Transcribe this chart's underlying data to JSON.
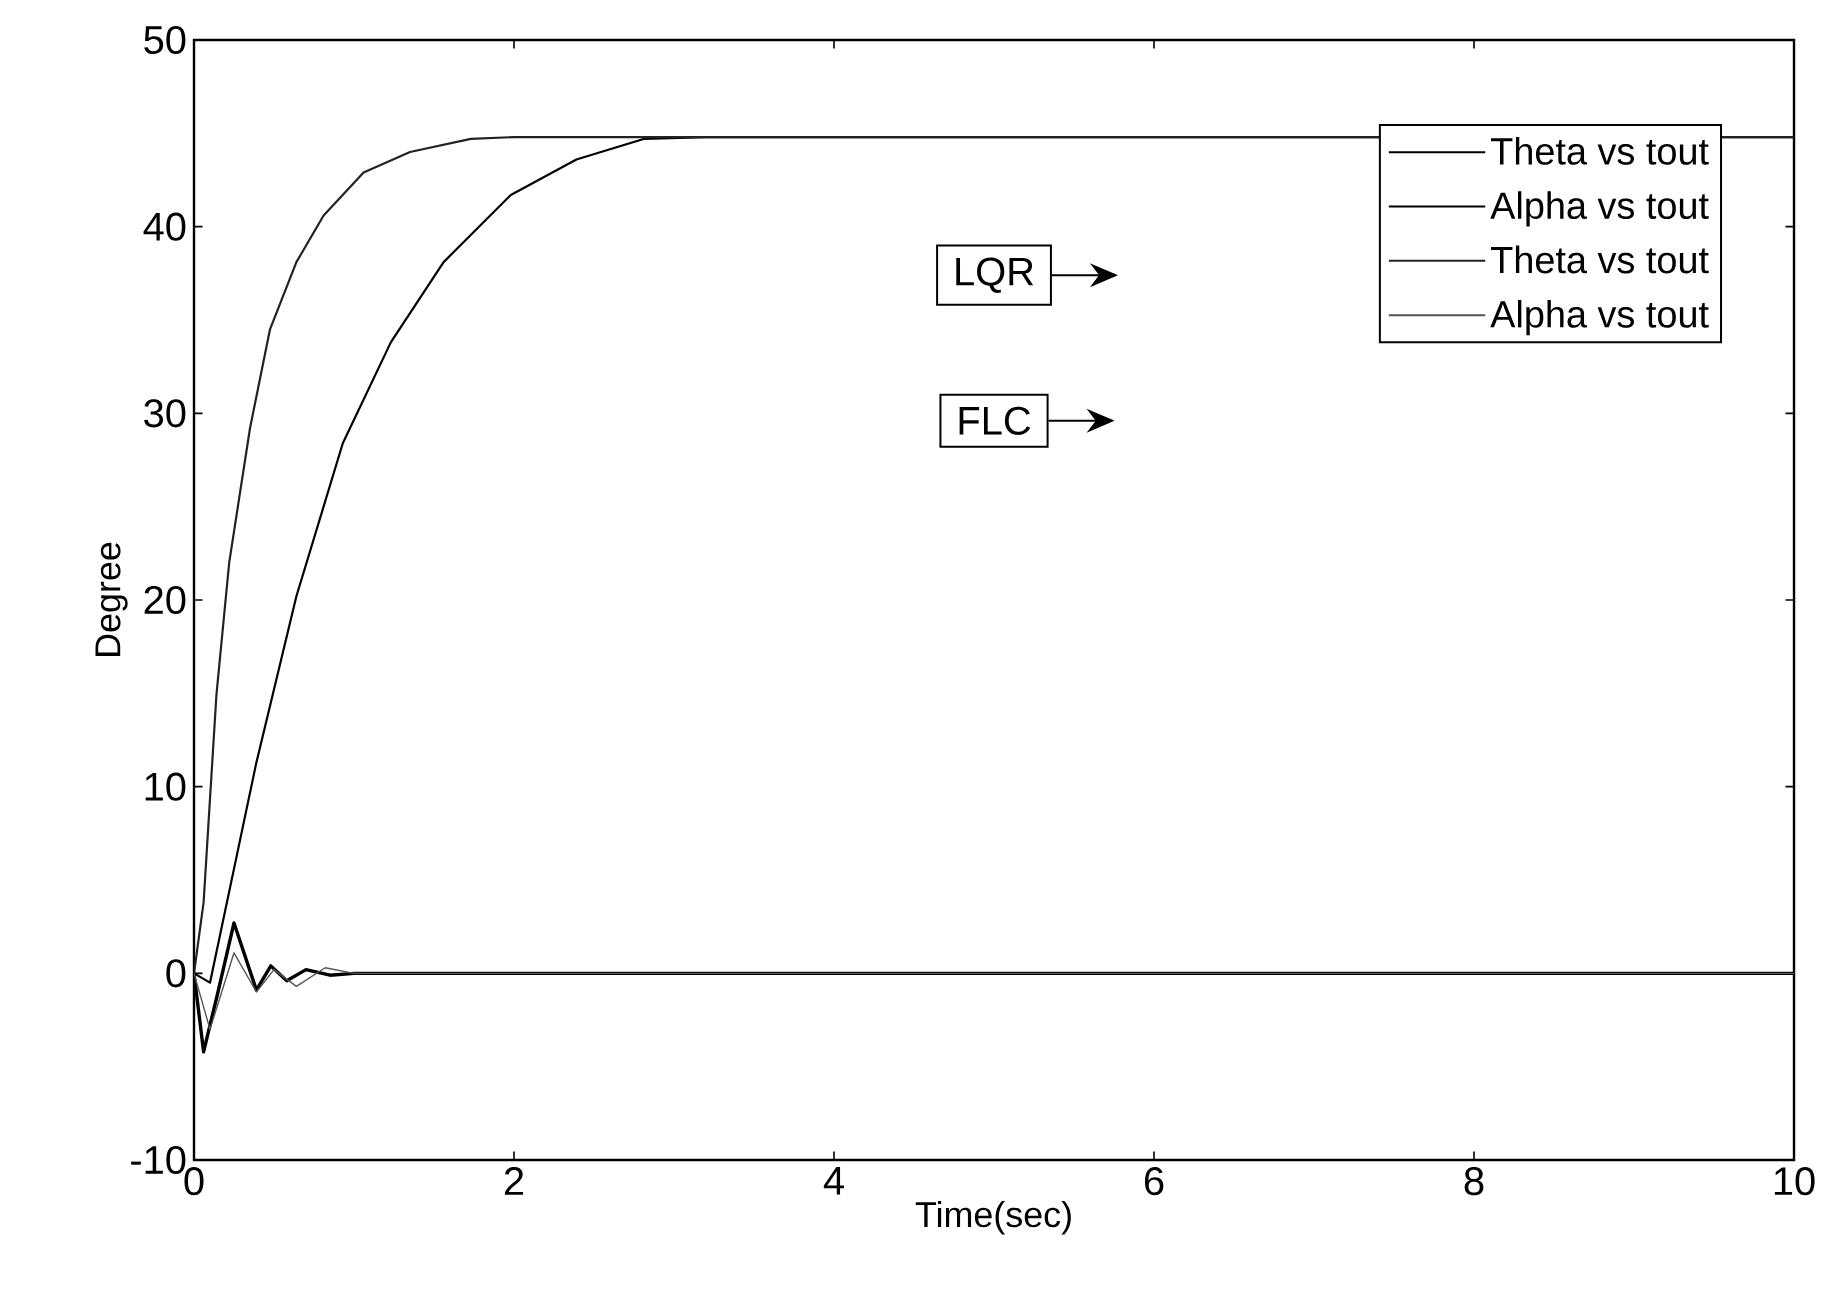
{
  "chart_data": {
    "type": "line",
    "xlabel": "Time(sec)",
    "ylabel": "Degree",
    "xlim": [
      0,
      10
    ],
    "ylim": [
      -10,
      50
    ],
    "xticks": [
      0,
      2,
      4,
      6,
      8,
      10
    ],
    "yticks": [
      -10,
      0,
      10,
      20,
      30,
      40,
      50
    ],
    "grid": false,
    "legend": "top right",
    "line_style": "solid",
    "annotations": [
      "LQR",
      "FLC"
    ],
    "series": [
      {
        "name": "Theta vs tout",
        "color": "#000000",
        "x": [
          0,
          0.1,
          0.39,
          0.64,
          0.93,
          1.23,
          1.56,
          1.98,
          2.39,
          2.81,
          3.2,
          10
        ],
        "values": [
          0,
          -0.5,
          11.3,
          20.2,
          28.4,
          33.8,
          38.1,
          41.7,
          43.6,
          44.7,
          44.8,
          44.8
        ]
      },
      {
        "name": "Alpha vs tout",
        "color": "#000000",
        "x": [
          0,
          0.06,
          0.15,
          0.25,
          0.39,
          0.48,
          0.58,
          0.7,
          0.85,
          1.0,
          10
        ],
        "values": [
          0,
          -4.2,
          -1,
          2.7,
          -0.9,
          0.4,
          -0.4,
          0.2,
          -0.1,
          0,
          0
        ]
      },
      {
        "name": "Theta vs tout",
        "color": "#222222",
        "x": [
          0,
          0.06,
          0.14,
          0.22,
          0.35,
          0.475,
          0.64,
          0.81,
          1.06,
          1.35,
          1.73,
          2.0,
          10
        ],
        "values": [
          0,
          3.8,
          14.9,
          22,
          29.2,
          34.5,
          38.1,
          40.6,
          42.9,
          44,
          44.7,
          44.8,
          44.8
        ]
      },
      {
        "name": "Alpha vs tout",
        "color": "#555555",
        "x": [
          0,
          0.1,
          0.25,
          0.39,
          0.5,
          0.64,
          0.82,
          1.0,
          10
        ],
        "values": [
          0,
          -3,
          1.1,
          -1.0,
          0.2,
          -0.7,
          0.3,
          0,
          0
        ]
      }
    ]
  }
}
